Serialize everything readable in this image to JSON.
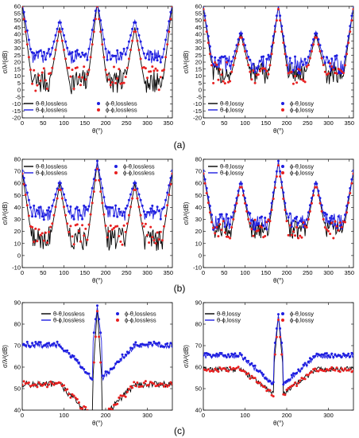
{
  "rows": [
    {
      "label": "(a)",
      "ylim": [
        -20,
        60
      ],
      "yticks": [
        -20,
        -15,
        -10,
        -5,
        0,
        5,
        10,
        15,
        20,
        25,
        30,
        35,
        40,
        45,
        50,
        55,
        60
      ]
    },
    {
      "label": "(b)",
      "ylim": [
        -10,
        80
      ],
      "yticks": [
        -10,
        0,
        10,
        20,
        30,
        40,
        50,
        60,
        70,
        80
      ]
    },
    {
      "label": "(c)",
      "ylim": [
        40,
        90
      ],
      "yticks": [
        40,
        50,
        60,
        70,
        80,
        90
      ]
    }
  ],
  "chart_data": [
    {
      "type": "line",
      "panel": "a-left",
      "ylabel": "σ/λ²(dB)",
      "xlabel": "θ(°)",
      "xlim": [
        0,
        360
      ],
      "ylim": [
        -20,
        60
      ],
      "xticks": [
        0,
        50,
        100,
        150,
        200,
        250,
        300,
        350
      ],
      "yticks": [
        -20,
        -15,
        -10,
        -5,
        0,
        5,
        10,
        15,
        20,
        25,
        30,
        35,
        40,
        45,
        50,
        55,
        60
      ],
      "legend": [
        "θ-θ,lossless",
        "θ-ϕ,lossless",
        "ϕ-θ,lossless",
        "ϕ-ϕ,lossless"
      ],
      "series": [
        {
          "name": "θ-θ,lossless",
          "color": "#000000",
          "style": "line",
          "base": 6,
          "noise": 9,
          "peaks": [
            [
              0,
              62
            ],
            [
              90,
              45
            ],
            [
              180,
              63
            ],
            [
              270,
              45
            ],
            [
              360,
              62
            ]
          ]
        },
        {
          "name": "θ-ϕ,lossless",
          "color": "#1f1fe0",
          "style": "line",
          "base": 24,
          "noise": 5,
          "peaks": [
            [
              0,
              62
            ],
            [
              90,
              50
            ],
            [
              180,
              63
            ],
            [
              270,
              50
            ],
            [
              360,
              62
            ]
          ]
        },
        {
          "name": "ϕ-θ,lossless",
          "color": "#1f1fe0",
          "style": "markers",
          "base": 24,
          "noise": 5,
          "peaks": [
            [
              0,
              62
            ],
            [
              90,
              50
            ],
            [
              180,
              63
            ],
            [
              270,
              50
            ],
            [
              360,
              62
            ]
          ]
        },
        {
          "name": "ϕ-ϕ,lossless",
          "color": "#e82020",
          "style": "markers",
          "base": 8,
          "noise": 9,
          "peaks": [
            [
              0,
              60
            ],
            [
              90,
              45
            ],
            [
              180,
              60
            ],
            [
              270,
              45
            ],
            [
              360,
              60
            ]
          ]
        }
      ]
    },
    {
      "type": "line",
      "panel": "a-right",
      "ylabel": "σ/λ²(dB)",
      "xlabel": "θ(°)",
      "xlim": [
        0,
        360
      ],
      "ylim": [
        -20,
        60
      ],
      "xticks": [
        0,
        50,
        100,
        150,
        200,
        250,
        300,
        350
      ],
      "yticks": [
        -20,
        -15,
        -10,
        -5,
        0,
        5,
        10,
        15,
        20,
        25,
        30,
        35,
        40,
        45,
        50,
        55,
        60
      ],
      "legend": [
        "θ-θ,lossy",
        "θ-ϕ,lossy",
        "ϕ-θ,lossy",
        "ϕ-ϕ,lossy"
      ],
      "series": [
        {
          "name": "θ-θ,lossy",
          "color": "#000000",
          "style": "line",
          "base": 12,
          "noise": 8,
          "peaks": [
            [
              0,
              60
            ],
            [
              90,
              40
            ],
            [
              180,
              60
            ],
            [
              270,
              40
            ],
            [
              360,
              60
            ]
          ]
        },
        {
          "name": "θ-ϕ,lossy",
          "color": "#1f1fe0",
          "style": "line",
          "base": 18,
          "noise": 7,
          "peaks": [
            [
              0,
              60
            ],
            [
              90,
              42
            ],
            [
              180,
              60
            ],
            [
              270,
              42
            ],
            [
              360,
              60
            ]
          ]
        },
        {
          "name": "ϕ-θ,lossy",
          "color": "#1f1fe0",
          "style": "markers",
          "base": 18,
          "noise": 7,
          "peaks": [
            [
              0,
              60
            ],
            [
              90,
              42
            ],
            [
              180,
              60
            ],
            [
              270,
              42
            ],
            [
              360,
              60
            ]
          ]
        },
        {
          "name": "ϕ-ϕ,lossy",
          "color": "#e82020",
          "style": "markers",
          "base": 12,
          "noise": 8,
          "peaks": [
            [
              0,
              58
            ],
            [
              90,
              40
            ],
            [
              180,
              58
            ],
            [
              270,
              40
            ],
            [
              360,
              58
            ]
          ]
        }
      ]
    },
    {
      "type": "line",
      "panel": "b-left",
      "ylabel": "σ/λ²(dB)",
      "xlabel": "θ(°)",
      "xlim": [
        0,
        360
      ],
      "ylim": [
        -10,
        80
      ],
      "xticks": [
        0,
        50,
        100,
        150,
        200,
        250,
        300,
        350
      ],
      "yticks": [
        -10,
        0,
        10,
        20,
        30,
        40,
        50,
        60,
        70,
        80
      ],
      "legend": [
        "θ-θ,lossless",
        "θ-ϕ,lossless",
        "ϕ-θ,lossless",
        "ϕ-ϕ,lossless"
      ],
      "series": [
        {
          "name": "θ-θ,lossless",
          "color": "#000000",
          "style": "line",
          "base": 14,
          "noise": 10,
          "peaks": [
            [
              0,
              70
            ],
            [
              90,
              60
            ],
            [
              180,
              78
            ],
            [
              270,
              60
            ],
            [
              360,
              70
            ]
          ]
        },
        {
          "name": "θ-ϕ,lossless",
          "color": "#1f1fe0",
          "style": "line",
          "base": 35,
          "noise": 6,
          "peaks": [
            [
              0,
              70
            ],
            [
              90,
              62
            ],
            [
              180,
              78
            ],
            [
              270,
              62
            ],
            [
              360,
              70
            ]
          ]
        },
        {
          "name": "ϕ-θ,lossless",
          "color": "#1f1fe0",
          "style": "markers",
          "base": 35,
          "noise": 6,
          "peaks": [
            [
              0,
              70
            ],
            [
              90,
              62
            ],
            [
              180,
              78
            ],
            [
              270,
              62
            ],
            [
              360,
              70
            ]
          ]
        },
        {
          "name": "ϕ-ϕ,lossless",
          "color": "#e82020",
          "style": "markers",
          "base": 18,
          "noise": 9,
          "peaks": [
            [
              0,
              68
            ],
            [
              90,
              58
            ],
            [
              180,
              72
            ],
            [
              270,
              58
            ],
            [
              360,
              68
            ]
          ]
        }
      ]
    },
    {
      "type": "line",
      "panel": "b-right",
      "ylabel": "σ/λ²(dB)",
      "xlabel": "θ(°)",
      "xlim": [
        0,
        360
      ],
      "ylim": [
        -10,
        80
      ],
      "xticks": [
        0,
        50,
        100,
        150,
        200,
        250,
        300,
        350
      ],
      "yticks": [
        -10,
        0,
        10,
        20,
        30,
        40,
        50,
        60,
        70,
        80
      ],
      "legend": [
        "θ-θ,lossy",
        "θ-ϕ,lossy",
        "ϕ-θ,lossy",
        "ϕ-ϕ,lossy"
      ],
      "series": [
        {
          "name": "θ-θ,lossy",
          "color": "#000000",
          "style": "line",
          "base": 22,
          "noise": 8,
          "peaks": [
            [
              0,
              70
            ],
            [
              90,
              62
            ],
            [
              180,
              78
            ],
            [
              270,
              62
            ],
            [
              360,
              70
            ]
          ]
        },
        {
          "name": "θ-ϕ,lossy",
          "color": "#1f1fe0",
          "style": "line",
          "base": 28,
          "noise": 7,
          "peaks": [
            [
              0,
              70
            ],
            [
              90,
              62
            ],
            [
              180,
              78
            ],
            [
              270,
              62
            ],
            [
              360,
              70
            ]
          ]
        },
        {
          "name": "ϕ-θ,lossy",
          "color": "#1f1fe0",
          "style": "markers",
          "base": 28,
          "noise": 7,
          "peaks": [
            [
              0,
              70
            ],
            [
              90,
              62
            ],
            [
              180,
              78
            ],
            [
              270,
              62
            ],
            [
              360,
              70
            ]
          ]
        },
        {
          "name": "ϕ-ϕ,lossy",
          "color": "#e82020",
          "style": "markers",
          "base": 22,
          "noise": 8,
          "peaks": [
            [
              0,
              68
            ],
            [
              90,
              60
            ],
            [
              180,
              75
            ],
            [
              270,
              60
            ],
            [
              360,
              68
            ]
          ]
        }
      ]
    },
    {
      "type": "line",
      "panel": "c-left",
      "ylabel": "σ/λ²(dB)",
      "xlabel": "θ(°)",
      "xlim": [
        0,
        360
      ],
      "ylim": [
        40,
        90
      ],
      "xticks": [
        0,
        100,
        200,
        300
      ],
      "yticks": [
        40,
        50,
        60,
        70,
        80,
        90
      ],
      "legend": [
        "θ-θ,lossless",
        "θ-ϕ,lossless",
        "ϕ-θ,lossless",
        "ϕ-ϕ,lossless"
      ],
      "series": [
        {
          "name": "θ-θ,lossless",
          "color": "#000000",
          "style": "line",
          "base": 52,
          "noise": 1.5,
          "dip": 8,
          "peaks": [
            [
              180,
              88
            ]
          ]
        },
        {
          "name": "θ-ϕ,lossless",
          "color": "#1f1fe0",
          "style": "line",
          "base": 70,
          "noise": 1.2,
          "dip": 8,
          "peaks": [
            [
              180,
              88
            ]
          ]
        },
        {
          "name": "ϕ-θ,lossless",
          "color": "#1f1fe0",
          "style": "markers",
          "base": 70,
          "noise": 1.2,
          "dip": 8,
          "peaks": [
            [
              180,
              88
            ]
          ]
        },
        {
          "name": "ϕ-ϕ,lossless",
          "color": "#e82020",
          "style": "markers",
          "base": 52,
          "noise": 1.5,
          "dip": 8,
          "peaks": [
            [
              180,
              86
            ]
          ]
        }
      ]
    },
    {
      "type": "line",
      "panel": "c-right",
      "ylabel": "σ/λ²(dB)",
      "xlabel": "θ(°)",
      "xlim": [
        0,
        360
      ],
      "ylim": [
        40,
        90
      ],
      "xticks": [
        0,
        100,
        200,
        300
      ],
      "yticks": [
        40,
        50,
        60,
        70,
        80,
        90
      ],
      "legend": [
        "θ-θ,lossy",
        "θ-ϕ,lossy",
        "ϕ-θ,lossy",
        "ϕ-ϕ,lossy"
      ],
      "series": [
        {
          "name": "θ-θ,lossy",
          "color": "#000000",
          "style": "line",
          "base": 59,
          "noise": 1.2,
          "dip": 6,
          "peaks": [
            [
              180,
              84
            ]
          ]
        },
        {
          "name": "θ-ϕ,lossy",
          "color": "#1f1fe0",
          "style": "line",
          "base": 65,
          "noise": 1.0,
          "dip": 7,
          "peaks": [
            [
              180,
              84
            ]
          ]
        },
        {
          "name": "ϕ-θ,lossy",
          "color": "#1f1fe0",
          "style": "markers",
          "base": 65,
          "noise": 1.0,
          "dip": 7,
          "peaks": [
            [
              180,
              84
            ]
          ]
        },
        {
          "name": "ϕ-ϕ,lossy",
          "color": "#e82020",
          "style": "markers",
          "base": 59,
          "noise": 1.2,
          "dip": 6,
          "peaks": [
            [
              180,
              82
            ]
          ]
        }
      ]
    }
  ]
}
